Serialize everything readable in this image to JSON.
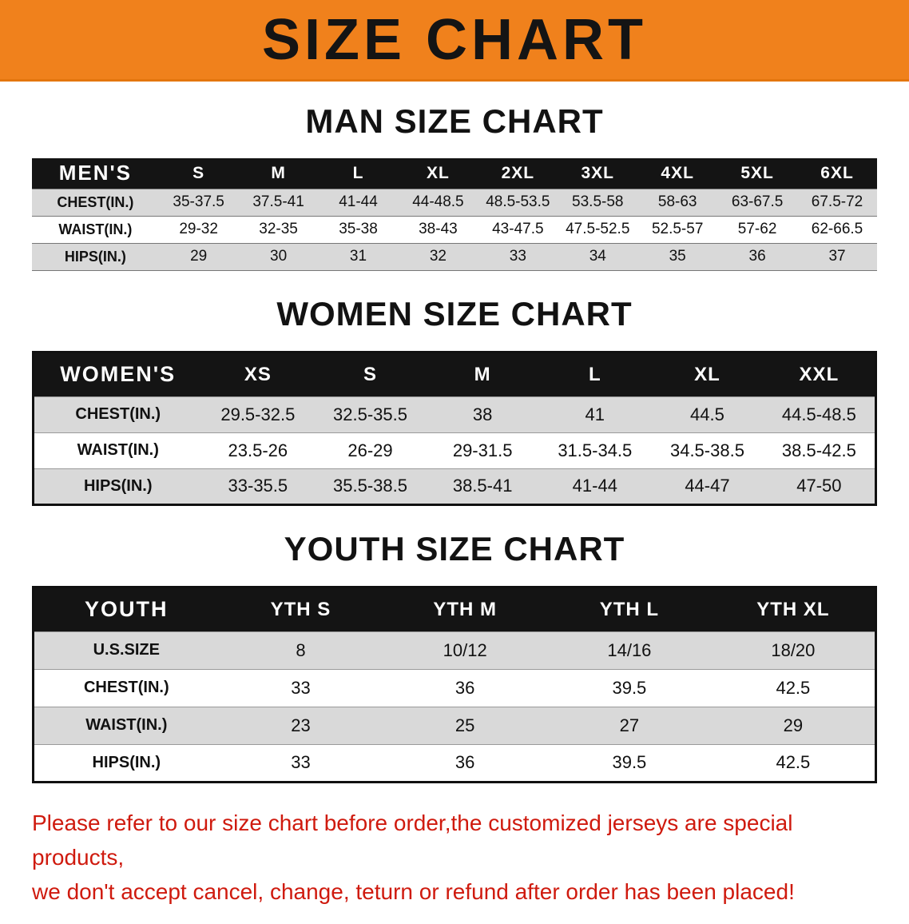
{
  "banner": {
    "title": "SIZE CHART"
  },
  "colors": {
    "banner-bg": "#f0811c",
    "table-header-bg": "#141414",
    "row-gray": "#d9d9d9",
    "footer-red": "#cf1a0e"
  },
  "chart_data": [
    {
      "type": "table",
      "title": "MAN SIZE CHART",
      "header_label": "MEN'S",
      "columns": [
        "S",
        "M",
        "L",
        "XL",
        "2XL",
        "3XL",
        "4XL",
        "5XL",
        "6XL"
      ],
      "rows": [
        {
          "label": "CHEST(IN.)",
          "values": [
            "35-37.5",
            "37.5-41",
            "41-44",
            "44-48.5",
            "48.5-53.5",
            "53.5-58",
            "58-63",
            "63-67.5",
            "67.5-72"
          ]
        },
        {
          "label": "WAIST(IN.)",
          "values": [
            "29-32",
            "32-35",
            "35-38",
            "38-43",
            "43-47.5",
            "47.5-52.5",
            "52.5-57",
            "57-62",
            "62-66.5"
          ]
        },
        {
          "label": "HIPS(IN.)",
          "values": [
            "29",
            "30",
            "31",
            "32",
            "33",
            "34",
            "35",
            "36",
            "37"
          ]
        }
      ]
    },
    {
      "type": "table",
      "title": "WOMEN SIZE CHART",
      "header_label": "WOMEN'S",
      "columns": [
        "XS",
        "S",
        "M",
        "L",
        "XL",
        "XXL"
      ],
      "rows": [
        {
          "label": "CHEST(IN.)",
          "values": [
            "29.5-32.5",
            "32.5-35.5",
            "38",
            "41",
            "44.5",
            "44.5-48.5"
          ]
        },
        {
          "label": "WAIST(IN.)",
          "values": [
            "23.5-26",
            "26-29",
            "29-31.5",
            "31.5-34.5",
            "34.5-38.5",
            "38.5-42.5"
          ]
        },
        {
          "label": "HIPS(IN.)",
          "values": [
            "33-35.5",
            "35.5-38.5",
            "38.5-41",
            "41-44",
            "44-47",
            "47-50"
          ]
        }
      ]
    },
    {
      "type": "table",
      "title": "YOUTH SIZE CHART",
      "header_label": "YOUTH",
      "columns": [
        "YTH S",
        "YTH M",
        "YTH L",
        "YTH XL"
      ],
      "rows": [
        {
          "label": "U.S.SIZE",
          "values": [
            "8",
            "10/12",
            "14/16",
            "18/20"
          ]
        },
        {
          "label": "CHEST(IN.)",
          "values": [
            "33",
            "36",
            "39.5",
            "42.5"
          ]
        },
        {
          "label": "WAIST(IN.)",
          "values": [
            "23",
            "25",
            "27",
            "29"
          ]
        },
        {
          "label": "HIPS(IN.)",
          "values": [
            "33",
            "36",
            "39.5",
            "42.5"
          ]
        }
      ]
    }
  ],
  "footer": {
    "line1": "Please refer to our size chart before order,the customized jerseys are special products,",
    "line2": "we don't accept cancel, change, teturn or refund after order has been placed!"
  }
}
